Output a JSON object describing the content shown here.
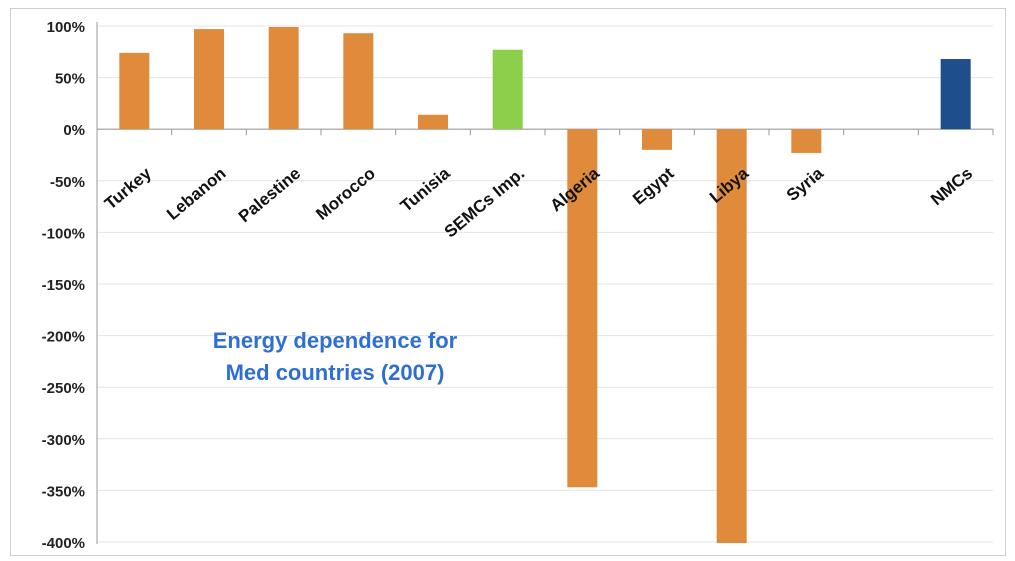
{
  "chart_data": {
    "type": "bar",
    "title_lines": [
      "Energy dependence for",
      "Med countries (2007)"
    ],
    "categories": [
      "Turkey",
      "Lebanon",
      "Palestine",
      "Morocco",
      "Tunisia",
      "SEMCs Imp.",
      "Algeria",
      "Egypt",
      "Libya",
      "Syria",
      "",
      "NMCs"
    ],
    "values": [
      74,
      97,
      99,
      93,
      14,
      77,
      -347,
      -20,
      -401,
      -23,
      null,
      68
    ],
    "bar_colors": [
      "#e08a3c",
      "#e08a3c",
      "#e08a3c",
      "#e08a3c",
      "#e08a3c",
      "#8ccf4a",
      "#e08a3c",
      "#e08a3c",
      "#e08a3c",
      "#e08a3c",
      "#e08a3c",
      "#1f4e8c"
    ],
    "y_ticks": [
      100,
      50,
      0,
      -50,
      -100,
      -150,
      -200,
      -250,
      -300,
      -350,
      -400
    ],
    "y_tick_labels": [
      "100%",
      "50%",
      "0%",
      "-50%",
      "-100%",
      "-150%",
      "-200%",
      "-250%",
      "-300%",
      "-350%",
      "-400%"
    ],
    "ylim": [
      -400,
      100
    ],
    "grid": true,
    "xlabel": "",
    "ylabel": ""
  }
}
